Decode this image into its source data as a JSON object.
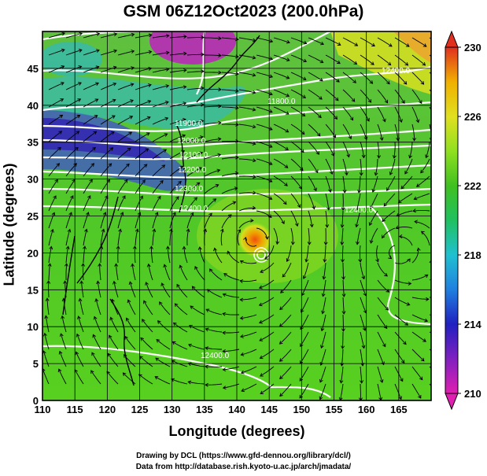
{
  "title": "GSM 06Z12Oct2023 (200.0hPa)",
  "x_axis": {
    "label": "Longitude (degrees)",
    "ticks": [
      "110",
      "115",
      "120",
      "125",
      "130",
      "135",
      "140",
      "145",
      "150",
      "155",
      "160",
      "165"
    ]
  },
  "y_axis": {
    "label": "Latitude  (degrees)",
    "ticks": [
      "0",
      "5",
      "10",
      "15",
      "20",
      "25",
      "30",
      "35",
      "40",
      "45"
    ]
  },
  "colorbar": {
    "ticks": [
      "210",
      "214",
      "218",
      "222",
      "226",
      "230"
    ],
    "range": [
      210,
      230
    ],
    "colors": [
      "#e020b0",
      "#8020c0",
      "#2020c0",
      "#2080e0",
      "#20c0d0",
      "#20c060",
      "#40c020",
      "#90e020",
      "#e0e020",
      "#f0b000",
      "#f06010",
      "#e03020"
    ]
  },
  "contour_labels": [
    "11900.0",
    "12000.0",
    "12100.0",
    "12200.0",
    "12300.0",
    "12400.0",
    "11800.0",
    "12400.0",
    "12400.0",
    "12400.0"
  ],
  "credits": {
    "line1": "Drawing by DCL (https://www.gfd-dennou.org/library/dcl/)",
    "line2": "Data from http://database.rish.kyoto-u.ac.jp/arch/jmadata/"
  },
  "map": {
    "lon_range": [
      110,
      170
    ],
    "lat_range": [
      0,
      50
    ],
    "typhoon_center": {
      "lon": 142.8,
      "lat": 21.8
    }
  },
  "chart_data": {
    "type": "heatmap",
    "title": "GSM 06Z12Oct2023 (200.0hPa)",
    "xlabel": "Longitude (degrees)",
    "ylabel": "Latitude  (degrees)",
    "xlim": [
      110,
      170
    ],
    "ylim": [
      0,
      50
    ],
    "colorbar_range": [
      210,
      230
    ],
    "contour_values": [
      11800,
      11900,
      12000,
      12100,
      12200,
      12300,
      12400
    ]
  }
}
